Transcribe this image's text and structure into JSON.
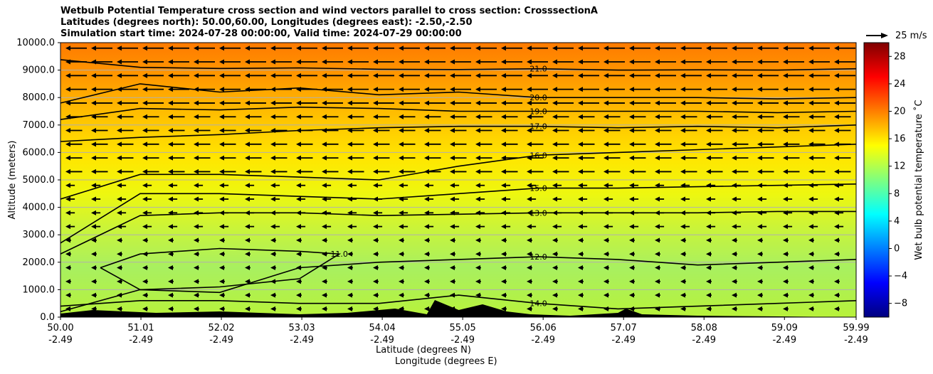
{
  "title_lines": [
    "Wetbulb Potential Temperature cross section and wind vectors parallel to cross section: CrosssectionA",
    "Latitudes (degrees north): 50.00,60.00, Longitudes (degrees east): -2.50,-2.50",
    "Simulation start time: 2024-07-28 00:00:00, Valid time: 2024-07-29 00:00:00"
  ],
  "reference_vector_label": "25 m/s",
  "colorbar_label": "Wet bulb potential temperature $^\\circ$C",
  "colorbar_label_display": "Wet bulb potential temperature ˚C",
  "colors": {
    "colormap": [
      "#00007f",
      "#0000ff",
      "#007fff",
      "#00ffff",
      "#7fff7f",
      "#ffff00",
      "#ff7f00",
      "#ff0000",
      "#7f0000"
    ],
    "contour_line": "#000000",
    "terrain": "#000000",
    "grid": "#b0b0b0"
  },
  "chart_data": {
    "type": "contour",
    "xlabel": "Latitude (degrees N)",
    "xlabel2": "Longitude (degrees E)",
    "ylabel": "Altitude (meters)",
    "x_ticks": [
      {
        "lat": "50.00",
        "lon": "-2.49",
        "value": 50.0
      },
      {
        "lat": "51.01",
        "lon": "-2.49",
        "value": 51.01
      },
      {
        "lat": "52.02",
        "lon": "-2.49",
        "value": 52.02
      },
      {
        "lat": "53.03",
        "lon": "-2.49",
        "value": 53.03
      },
      {
        "lat": "54.04",
        "lon": "-2.49",
        "value": 54.04
      },
      {
        "lat": "55.05",
        "lon": "-2.49",
        "value": 55.05
      },
      {
        "lat": "56.06",
        "lon": "-2.49",
        "value": 56.06
      },
      {
        "lat": "57.07",
        "lon": "-2.49",
        "value": 57.07
      },
      {
        "lat": "58.08",
        "lon": "-2.49",
        "value": 58.08
      },
      {
        "lat": "59.09",
        "lon": "-2.49",
        "value": 59.09
      },
      {
        "lat": "59.99",
        "lon": "-2.49",
        "value": 59.99
      }
    ],
    "y_ticks": [
      "0.0",
      "1000.0",
      "2000.0",
      "3000.0",
      "4000.0",
      "5000.0",
      "6000.0",
      "7000.0",
      "8000.0",
      "9000.0",
      "10000.0"
    ],
    "xlim": [
      50.0,
      59.99
    ],
    "ylim": [
      0,
      10000
    ],
    "grid": "horizontal",
    "colorbar_ticks": [
      "−8",
      "−4",
      "0",
      "4",
      "8",
      "12",
      "16",
      "20",
      "24",
      "28"
    ],
    "colorbar_range": [
      -10,
      30
    ],
    "contours": [
      {
        "level": 21.0,
        "label": "21.0",
        "x": [
          50.0,
          51.0,
          52.0,
          53.0,
          54.0,
          55.0,
          56.0,
          57.0,
          58.0,
          59.0,
          59.99
        ],
        "y": [
          9380,
          9100,
          9060,
          9080,
          9030,
          9020,
          9050,
          9000,
          9010,
          9000,
          9050
        ]
      },
      {
        "level": 20.0,
        "label": "20.0",
        "x": [
          50.0,
          51.0,
          52.0,
          53.0,
          54.0,
          55.0,
          56.0,
          57.0,
          58.0,
          59.0,
          59.99
        ],
        "y": [
          7800,
          8500,
          8200,
          8350,
          8100,
          8200,
          8000,
          8000,
          8000,
          7950,
          8000
        ]
      },
      {
        "level": 19.0,
        "label": "19.0",
        "x": [
          50.0,
          51.0,
          52.0,
          53.0,
          54.0,
          55.0,
          56.0,
          57.0,
          58.0,
          59.0,
          59.99
        ],
        "y": [
          7200,
          7600,
          7550,
          7650,
          7600,
          7500,
          7500,
          7500,
          7500,
          7450,
          7500
        ]
      },
      {
        "level": 17.0,
        "label": "17.0",
        "x": [
          50.0,
          51.0,
          52.0,
          53.0,
          54.0,
          55.0,
          56.0,
          57.0,
          58.0,
          59.0,
          59.99
        ],
        "y": [
          6400,
          6550,
          6650,
          6800,
          6900,
          6950,
          6950,
          6900,
          6950,
          6900,
          7000
        ]
      },
      {
        "level": 16.0,
        "label": "16.0",
        "x": [
          50.0,
          51.0,
          52.0,
          53.0,
          54.0,
          55.0,
          56.0,
          57.0,
          58.0,
          59.0,
          59.99
        ],
        "y": [
          4300,
          5200,
          5200,
          5100,
          5000,
          5500,
          5900,
          6000,
          6100,
          6200,
          6300
        ]
      },
      {
        "level": 15.0,
        "label": "15.0",
        "x": [
          50.0,
          51.0,
          52.0,
          53.0,
          54.0,
          55.0,
          56.0,
          57.0,
          58.0,
          59.0,
          59.99
        ],
        "y": [
          2700,
          4500,
          4500,
          4400,
          4300,
          4500,
          4700,
          4700,
          4750,
          4800,
          4850
        ]
      },
      {
        "level": 13.0,
        "label": "13.0",
        "x": [
          50.0,
          51.0,
          52.0,
          53.0,
          54.0,
          55.0,
          56.0,
          57.0,
          58.0,
          59.0,
          59.99
        ],
        "y": [
          2300,
          3700,
          3800,
          3800,
          3700,
          3750,
          3800,
          3800,
          3800,
          3850,
          3850
        ]
      },
      {
        "level": 12.0,
        "label": "12.0",
        "x": [
          50.0,
          51.0,
          52.0,
          53.0,
          54.0,
          55.0,
          56.0,
          57.0,
          58.0,
          59.0,
          59.99
        ],
        "y": [
          200,
          1000,
          900,
          1800,
          2000,
          2100,
          2200,
          2100,
          1900,
          2000,
          2100
        ]
      },
      {
        "level": 11.0,
        "label": "11.0",
        "x": [
          50.5,
          51.0,
          52.0,
          53.0,
          53.5,
          53.0,
          52.0,
          51.0,
          50.5
        ],
        "y": [
          1800,
          2300,
          2500,
          2400,
          2300,
          1400,
          1100,
          1000,
          1800
        ]
      },
      {
        "level": 14.0,
        "label": "14.0",
        "x": [
          50.0,
          51.0,
          52.0,
          53.0,
          54.0,
          55.0,
          56.0,
          57.0,
          58.0,
          59.0,
          59.99
        ],
        "y": [
          400,
          600,
          600,
          500,
          500,
          800,
          500,
          300,
          400,
          500,
          600
        ]
      }
    ],
    "wind_vectors": {
      "direction": "toward lower latitude",
      "upper_levels_stronger": true,
      "max_speed_m_s": 25
    }
  }
}
